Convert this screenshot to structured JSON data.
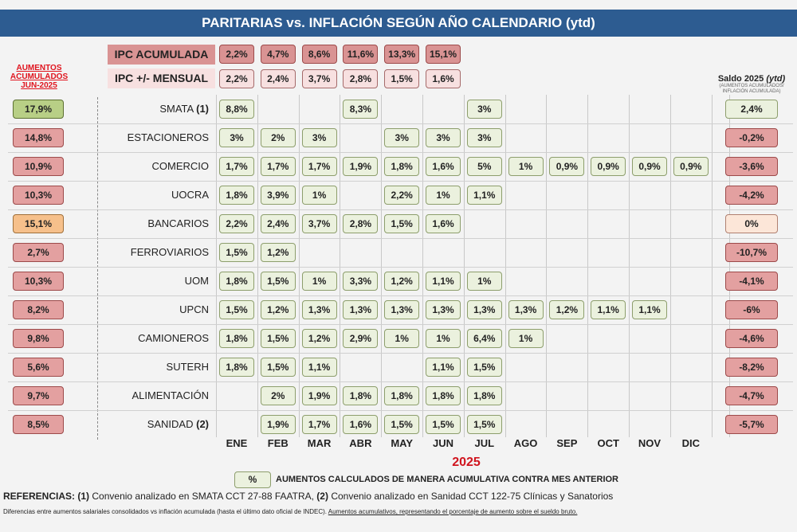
{
  "title": "PARITARIAS vs. INFLACIÓN SEGÚN AÑO CALENDARIO (ytd)",
  "left_header": [
    "AUMENTOS",
    "ACUMULADOS",
    "JUN-2025"
  ],
  "ipc": {
    "acumulada_label": "IPC ACUMULADA",
    "acumulada": [
      "2,2%",
      "4,7%",
      "8,6%",
      "11,6%",
      "13,3%",
      "15,1%"
    ],
    "mensual_label": "IPC +/- MENSUAL",
    "mensual": [
      "2,2%",
      "2,4%",
      "3,7%",
      "2,8%",
      "1,5%",
      "1,6%"
    ]
  },
  "saldo_header": {
    "title": "Saldo 2025",
    "title_suffix": "(ytd)",
    "subtitle1": "(AUMENTOS ACUMULADOS/",
    "subtitle2": "INFLACIÓN ACUMULADA)"
  },
  "months": [
    "ENE",
    "FEB",
    "MAR",
    "ABR",
    "MAY",
    "JUN",
    "JUL",
    "AGO",
    "SEP",
    "OCT",
    "NOV",
    "DIC"
  ],
  "rows": [
    {
      "name": "SMATA",
      "ref": "(1)",
      "acum": "17,9%",
      "acum_status": "lgreen",
      "values": [
        "8,8%",
        "",
        "",
        "8,3%",
        "",
        "",
        "3%",
        "",
        "",
        "",
        "",
        ""
      ],
      "saldo": "2,4%",
      "saldo_status": "green"
    },
    {
      "name": "ESTACIONEROS",
      "ref": "",
      "acum": "14,8%",
      "acum_status": "red",
      "values": [
        "3%",
        "2%",
        "3%",
        "",
        "3%",
        "3%",
        "3%",
        "",
        "",
        "",
        "",
        ""
      ],
      "saldo": "-0,2%",
      "saldo_status": "red"
    },
    {
      "name": "COMERCIO",
      "ref": "",
      "acum": "10,9%",
      "acum_status": "red",
      "values": [
        "1,7%",
        "1,7%",
        "1,7%",
        "1,9%",
        "1,8%",
        "1,6%",
        "5%",
        "1%",
        "0,9%",
        "0,9%",
        "0,9%",
        "0,9%"
      ],
      "saldo": "-3,6%",
      "saldo_status": "red"
    },
    {
      "name": "UOCRA",
      "ref": "",
      "acum": "10,3%",
      "acum_status": "red",
      "values": [
        "1,8%",
        "3,9%",
        "1%",
        "",
        "2,2%",
        "1%",
        "1,1%",
        "",
        "",
        "",
        "",
        ""
      ],
      "saldo": "-4,2%",
      "saldo_status": "red"
    },
    {
      "name": "BANCARIOS",
      "ref": "",
      "acum": "15,1%",
      "acum_status": "orange",
      "values": [
        "2,2%",
        "2,4%",
        "3,7%",
        "2,8%",
        "1,5%",
        "1,6%",
        "",
        "",
        "",
        "",
        "",
        ""
      ],
      "saldo": "0%",
      "saldo_status": "peach"
    },
    {
      "name": "FERROVIARIOS",
      "ref": "",
      "acum": "2,7%",
      "acum_status": "red",
      "values": [
        "1,5%",
        "1,2%",
        "",
        "",
        "",
        "",
        "",
        "",
        "",
        "",
        "",
        ""
      ],
      "saldo": "-10,7%",
      "saldo_status": "red"
    },
    {
      "name": "UOM",
      "ref": "",
      "acum": "10,3%",
      "acum_status": "red",
      "values": [
        "1,8%",
        "1,5%",
        "1%",
        "3,3%",
        "1,2%",
        "1,1%",
        "1%",
        "",
        "",
        "",
        "",
        ""
      ],
      "saldo": "-4,1%",
      "saldo_status": "red"
    },
    {
      "name": "UPCN",
      "ref": "",
      "acum": "8,2%",
      "acum_status": "red",
      "values": [
        "1,5%",
        "1,2%",
        "1,3%",
        "1,3%",
        "1,3%",
        "1,3%",
        "1,3%",
        "1,3%",
        "1,2%",
        "1,1%",
        "1,1%",
        ""
      ],
      "saldo": "-6%",
      "saldo_status": "red"
    },
    {
      "name": "CAMIONEROS",
      "ref": "",
      "acum": "9,8%",
      "acum_status": "red",
      "values": [
        "1,8%",
        "1,5%",
        "1,2%",
        "2,9%",
        "1%",
        "1%",
        "6,4%",
        "1%",
        "",
        "",
        "",
        ""
      ],
      "saldo": "-4,6%",
      "saldo_status": "red"
    },
    {
      "name": "SUTERH",
      "ref": "",
      "acum": "5,6%",
      "acum_status": "red",
      "values": [
        "1,8%",
        "1,5%",
        "1,1%",
        "",
        "",
        "1,1%",
        "1,5%",
        "",
        "",
        "",
        "",
        ""
      ],
      "saldo": "-8,2%",
      "saldo_status": "red"
    },
    {
      "name": "ALIMENTACIÓN",
      "ref": "",
      "acum": "9,7%",
      "acum_status": "red",
      "values": [
        "",
        "2%",
        "1,9%",
        "1,8%",
        "1,8%",
        "1,8%",
        "1,8%",
        "",
        "",
        "",
        "",
        ""
      ],
      "saldo": "-4,7%",
      "saldo_status": "red"
    },
    {
      "name": "SANIDAD",
      "ref": "(2)",
      "acum": "8,5%",
      "acum_status": "red",
      "values": [
        "",
        "1,9%",
        "1,7%",
        "1,6%",
        "1,5%",
        "1,5%",
        "1,5%",
        "",
        "",
        "",
        "",
        ""
      ],
      "saldo": "-5,7%",
      "saldo_status": "red"
    }
  ],
  "year": "2025",
  "legend": {
    "symbol": "%",
    "text": "AUMENTOS CALCULADOS DE MANERA ACUMULATIVA CONTRA MES ANTERIOR"
  },
  "references": {
    "label": "REFERENCIAS:",
    "ref1_num": "(1)",
    "ref1": "Convenio analizado en SMATA CCT 27-88 FAATRA,",
    "ref2_num": "(2)",
    "ref2": "Convenio analizado en Sanidad CCT 122-75 Clínicas y Sanatorios"
  },
  "note": {
    "text": "Diferencias entre aumentos salariales consolidados vs inflación acumulada (hasta el último dato oficial de INDEC).",
    "underlined": "Aumentos acumulativos, representando el porcentaje de aumento sobre el sueldo bruto."
  }
}
